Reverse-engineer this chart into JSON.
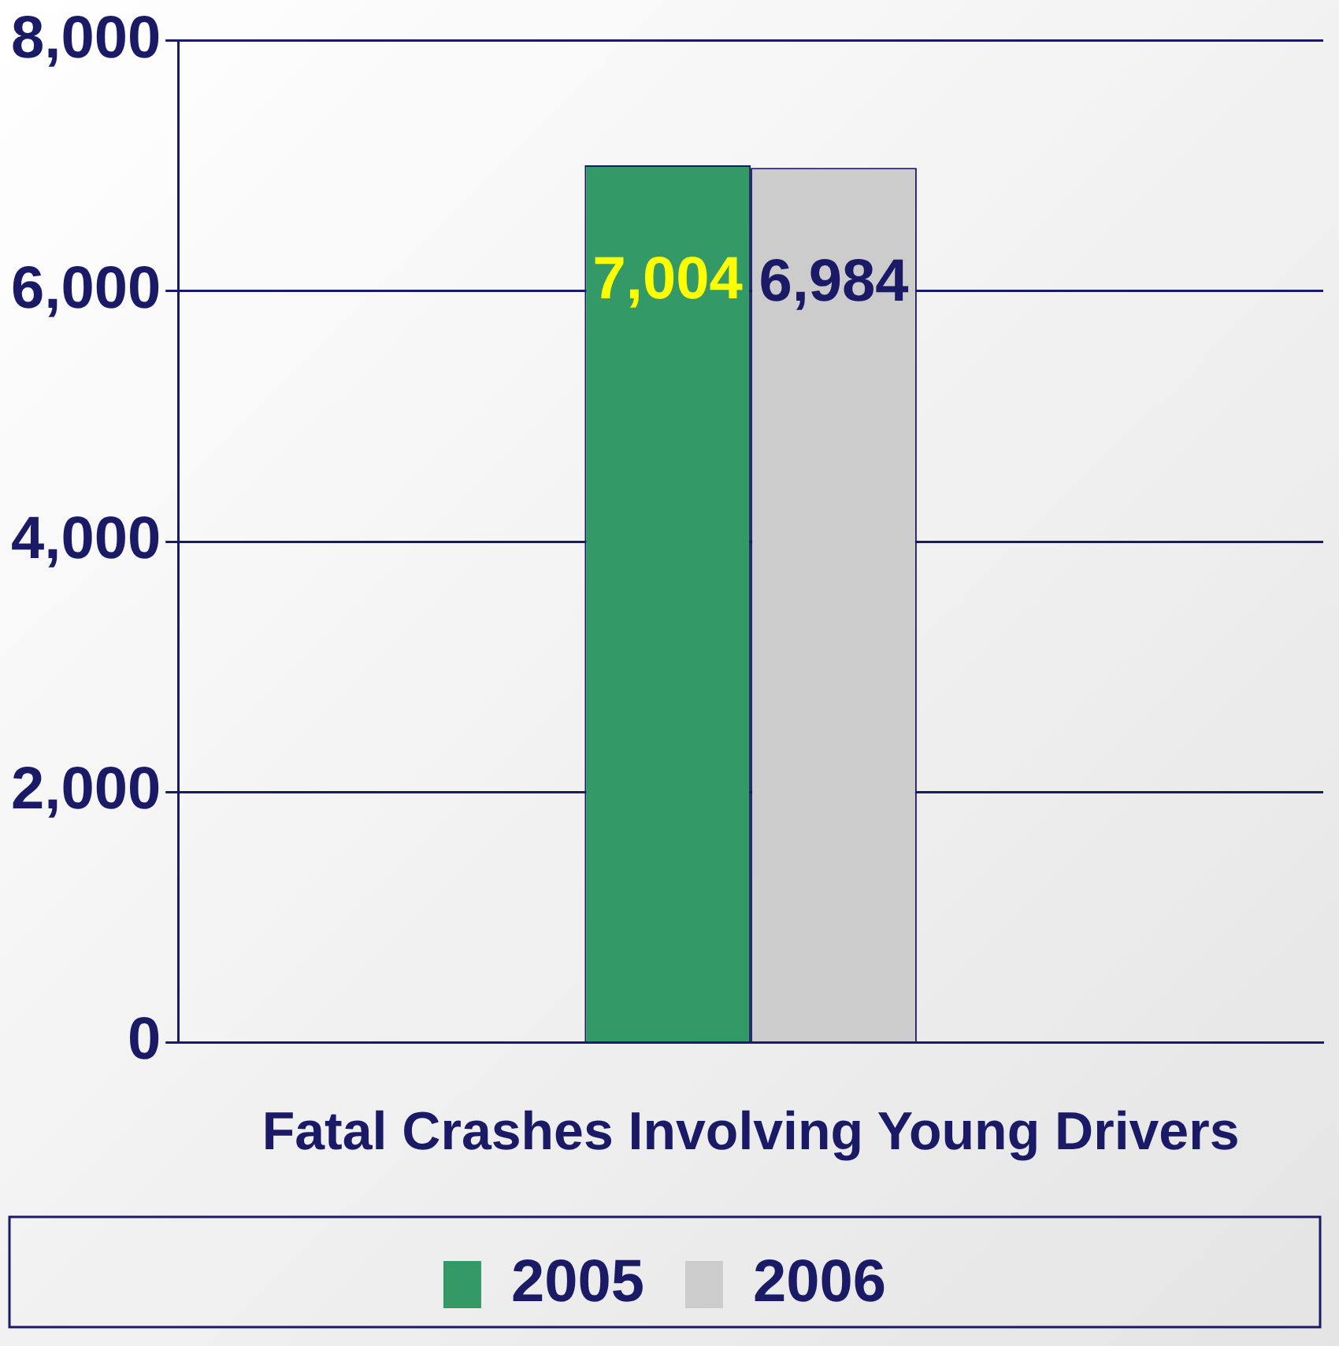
{
  "chart_data": {
    "type": "bar",
    "categories": [
      "Fatal Crashes Involving Young Drivers"
    ],
    "series": [
      {
        "name": "2005",
        "color": "#339966",
        "values": [
          7004
        ]
      },
      {
        "name": "2006",
        "color": "#cccccc",
        "values": [
          6984
        ]
      }
    ],
    "ylim": [
      0,
      8000
    ],
    "yticks": [
      0,
      {
        "value": 2000,
        "label": "2,000"
      },
      {
        "value": 4000,
        "label": "4,000"
      },
      {
        "value": 6000,
        "label": "6,000"
      },
      {
        "value": 8000,
        "label": "8,000"
      }
    ],
    "value_labels": [
      [
        "7,004"
      ],
      [
        "6,984"
      ]
    ],
    "grid": "y",
    "legend": "bottom"
  }
}
